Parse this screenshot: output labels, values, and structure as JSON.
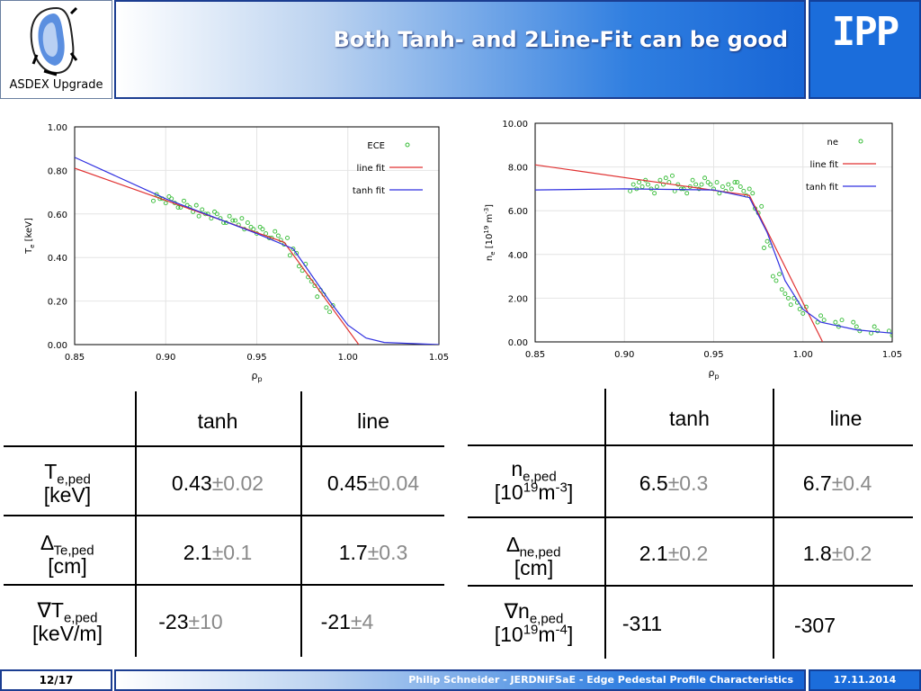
{
  "header": {
    "logo_label": "ASDEX Upgrade",
    "title": "Both Tanh- and 2Line-Fit can be good",
    "brand": "IPP"
  },
  "chart_data": [
    {
      "type": "scatter",
      "title": "",
      "xlabel": "ρp",
      "ylabel": "Te [keV]",
      "xlim": [
        0.85,
        1.05
      ],
      "ylim": [
        0.0,
        1.0
      ],
      "xticks": [
        "0.85",
        "0.90",
        "0.95",
        "1.00",
        "1.05"
      ],
      "yticks": [
        "0.00",
        "0.20",
        "0.40",
        "0.60",
        "0.80",
        "1.00"
      ],
      "legend_position": "top-right",
      "series": [
        {
          "name": "ECE",
          "style": "points",
          "color": "#33bb33",
          "x": [
            0.895,
            0.9,
            0.905,
            0.91,
            0.915,
            0.92,
            0.925,
            0.93,
            0.935,
            0.94,
            0.945,
            0.95,
            0.955,
            0.96,
            0.965,
            0.97,
            0.975,
            0.98,
            0.985,
            0.99
          ],
          "y": [
            0.68,
            0.67,
            0.65,
            0.64,
            0.62,
            0.61,
            0.6,
            0.58,
            0.57,
            0.56,
            0.55,
            0.53,
            0.51,
            0.5,
            0.47,
            0.43,
            0.36,
            0.29,
            0.23,
            0.16
          ]
        },
        {
          "name": "line fit",
          "style": "line",
          "color": "#e03030",
          "x": [
            0.85,
            0.965,
            1.006
          ],
          "y": [
            0.81,
            0.47,
            0.0
          ]
        },
        {
          "name": "tanh fit",
          "style": "line",
          "color": "#3030e0",
          "x": [
            0.85,
            0.9,
            0.95,
            0.97,
            0.99,
            1.0,
            1.01,
            1.02,
            1.05
          ],
          "y": [
            0.86,
            0.67,
            0.51,
            0.44,
            0.2,
            0.09,
            0.03,
            0.01,
            0.0
          ]
        }
      ]
    },
    {
      "type": "scatter",
      "title": "",
      "xlabel": "ρp",
      "ylabel": "ne [10^19 m^-3]",
      "xlim": [
        0.85,
        1.05
      ],
      "ylim": [
        0.0,
        10.0
      ],
      "xticks": [
        "0.85",
        "0.90",
        "0.95",
        "1.00",
        "1.05"
      ],
      "yticks": [
        "0.00",
        "2.00",
        "4.00",
        "6.00",
        "8.00",
        "10.00"
      ],
      "legend_position": "top-right",
      "series": [
        {
          "name": "ne",
          "style": "points",
          "color": "#33bb33",
          "x": [
            0.905,
            0.91,
            0.915,
            0.92,
            0.925,
            0.93,
            0.935,
            0.94,
            0.945,
            0.95,
            0.955,
            0.96,
            0.965,
            0.97,
            0.975,
            0.98,
            0.985,
            0.99,
            0.995,
            1.0,
            1.01,
            1.02,
            1.03,
            1.04,
            1.05
          ],
          "y": [
            7.1,
            7.3,
            7.0,
            7.2,
            7.4,
            7.1,
            7.0,
            7.2,
            7.3,
            7.1,
            7.0,
            7.2,
            7.1,
            6.8,
            6.0,
            4.5,
            3.0,
            2.2,
            1.8,
            1.4,
            1.1,
            0.9,
            0.7,
            0.5,
            0.4
          ]
        },
        {
          "name": "line fit",
          "style": "line",
          "color": "#e03030",
          "x": [
            0.85,
            0.97,
            1.011
          ],
          "y": [
            8.1,
            6.7,
            0.0
          ]
        },
        {
          "name": "tanh fit",
          "style": "line",
          "color": "#3030e0",
          "x": [
            0.85,
            0.9,
            0.95,
            0.97,
            0.98,
            0.99,
            1.0,
            1.01,
            1.03,
            1.05
          ],
          "y": [
            6.95,
            7.0,
            6.95,
            6.6,
            5.0,
            2.8,
            1.5,
            0.9,
            0.55,
            0.4
          ]
        }
      ]
    }
  ],
  "table_left": {
    "headers": [
      "tanh",
      "line"
    ],
    "rows": [
      {
        "q": "T",
        "q_sub": "e,ped",
        "unit": "[keV]",
        "tanh_val": "0.43",
        "tanh_err": "±0.02",
        "line_val": "0.45",
        "line_err": "±0.04"
      },
      {
        "q": "∆",
        "q_sub": "Te,ped",
        "unit": "[cm]",
        "tanh_val": "2.1",
        "tanh_err": "±0.1",
        "line_val": "1.7",
        "line_err": "±0.3"
      },
      {
        "q": "∇T",
        "q_sub": "e,ped",
        "unit": "[keV/m]",
        "tanh_val": "-23",
        "tanh_err": "±10",
        "line_val": "-21",
        "line_err": "±4"
      }
    ]
  },
  "table_right": {
    "headers": [
      "tanh",
      "line"
    ],
    "rows": [
      {
        "q": "n",
        "q_sub": "e,ped",
        "unit_a": "[10",
        "unit_sup": "19",
        "unit_b": "m",
        "unit_sup2": "-3",
        "unit_c": "]",
        "tanh_val": "6.5",
        "tanh_err": "±0.3",
        "line_val": "6.7",
        "line_err": "±0.4"
      },
      {
        "q": "∆",
        "q_sub": "ne,ped",
        "unit": "[cm]",
        "tanh_val": "2.1",
        "tanh_err": "±0.2",
        "line_val": "1.8",
        "line_err": "±0.2"
      },
      {
        "q": "∇n",
        "q_sub": "e,ped",
        "unit_a": "[10",
        "unit_sup": "19",
        "unit_b": "m",
        "unit_sup2": "-4",
        "unit_c": "]",
        "tanh_val": "-311",
        "line_val": "-307"
      }
    ]
  },
  "footer": {
    "page": "12/17",
    "caption": "Philip Schneider - JERDNiFSaE - Edge Pedestal Profile Characteristics",
    "date": "17.11.2014"
  },
  "colors": {
    "title_blue": "#1866d6",
    "ece_green": "#33bb33",
    "line_red": "#e03030",
    "tanh_blue": "#3030e0"
  }
}
